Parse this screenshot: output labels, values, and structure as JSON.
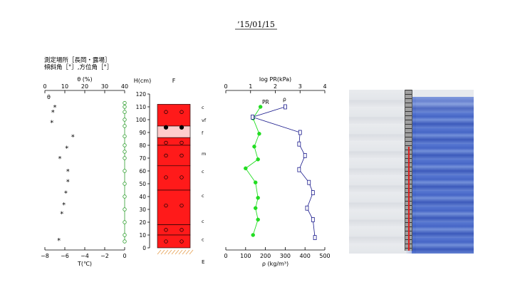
{
  "header": {
    "date": "’15/01/15"
  },
  "meta": {
    "line1": "測定場所［長岡・露場］",
    "line2": "傾斜角［°］,方位角［°］"
  },
  "colors": {
    "temp": "#000000",
    "theta": "#2e9e2e",
    "pr": "#22dd22",
    "rho": "#1a1a8c",
    "layer_red": "#ff1a1a",
    "layer_pink": "#ffcccc",
    "ground": "#e6a050"
  },
  "chart_data": [
    {
      "type": "scatter",
      "name": "temperature-water-content",
      "top_label": "θ (%)",
      "top_ticks": [
        "0",
        "10",
        "20",
        "30",
        "40"
      ],
      "bottom_label": "T(℃)",
      "bottom_ticks": [
        "−8",
        "−6",
        "−4",
        "−2",
        "0"
      ],
      "theta_series_label": "θ",
      "xlim_T": [
        -8,
        0
      ],
      "xlim_theta": [
        0,
        40
      ],
      "temperature": [
        {
          "T": -7.0,
          "h": 110
        },
        {
          "T": -7.2,
          "h": 106
        },
        {
          "T": -7.3,
          "h": 98
        },
        {
          "T": -5.2,
          "h": 87
        },
        {
          "T": -5.8,
          "h": 78
        },
        {
          "T": -6.5,
          "h": 70
        },
        {
          "T": -5.7,
          "h": 60
        },
        {
          "T": -5.7,
          "h": 52
        },
        {
          "T": -5.9,
          "h": 43
        },
        {
          "T": -6.1,
          "h": 34
        },
        {
          "T": -6.3,
          "h": 27
        },
        {
          "T": -6.6,
          "h": 6
        }
      ],
      "theta": [
        {
          "v": 40,
          "h": 113
        },
        {
          "v": 40,
          "h": 110
        },
        {
          "v": 40,
          "h": 106
        },
        {
          "v": 40,
          "h": 100
        },
        {
          "v": 40,
          "h": 95
        },
        {
          "v": 40,
          "h": 87
        },
        {
          "v": 40,
          "h": 80
        },
        {
          "v": 40,
          "h": 75
        },
        {
          "v": 40,
          "h": 70
        },
        {
          "v": 40,
          "h": 60
        },
        {
          "v": 40,
          "h": 50
        },
        {
          "v": 40,
          "h": 40
        },
        {
          "v": 40,
          "h": 30
        },
        {
          "v": 40,
          "h": 20
        },
        {
          "v": 40,
          "h": 10
        },
        {
          "v": 40,
          "h": 5
        }
      ]
    },
    {
      "type": "table",
      "name": "snow-layers",
      "h_label": "H(cm)",
      "f_label": "F",
      "h_ticks": [
        "0",
        "10",
        "20",
        "30",
        "40",
        "50",
        "60",
        "70",
        "80",
        "90",
        "100",
        "110",
        "120"
      ],
      "ylim": [
        0,
        120
      ],
      "ground_label": "E",
      "layers": [
        {
          "bottom": 95,
          "top": 112,
          "color": "red"
        },
        {
          "bottom": 86,
          "top": 95,
          "color": "pink"
        },
        {
          "bottom": 80,
          "top": 86,
          "color": "red"
        },
        {
          "bottom": 64,
          "top": 80,
          "color": "red"
        },
        {
          "bottom": 45,
          "top": 64,
          "color": "red"
        },
        {
          "bottom": 18,
          "top": 45,
          "color": "red"
        },
        {
          "bottom": 10,
          "top": 18,
          "color": "red"
        },
        {
          "bottom": 0,
          "top": 10,
          "color": "red"
        }
      ],
      "grain_marks": [
        {
          "h": 106,
          "filled": false
        },
        {
          "h": 94,
          "filled": true
        },
        {
          "h": 82,
          "filled": false
        },
        {
          "h": 72,
          "filled": false
        },
        {
          "h": 55,
          "filled": false
        },
        {
          "h": 33,
          "filled": false
        },
        {
          "h": 14,
          "filled": false
        },
        {
          "h": 5,
          "filled": false
        }
      ],
      "hardness_labels": [
        {
          "h": 110,
          "text": "c"
        },
        {
          "h": 100,
          "text": "vf"
        },
        {
          "h": 90,
          "text": "f"
        },
        {
          "h": 74,
          "text": "m"
        },
        {
          "h": 60,
          "text": "c"
        },
        {
          "h": 41,
          "text": "c"
        },
        {
          "h": 21,
          "text": "c"
        },
        {
          "h": 7,
          "text": "c"
        }
      ]
    },
    {
      "type": "line",
      "name": "pr-density",
      "top_label": "log PR(kPa)",
      "top_ticks": [
        "0",
        "1",
        "2",
        "3",
        "4"
      ],
      "bottom_label": "ρ (kg/m³)",
      "bottom_ticks": [
        "0",
        "100",
        "200",
        "300",
        "400",
        "500"
      ],
      "pr_series_label": "PR",
      "rho_series_label": "ρ",
      "xlim_logpr": [
        0,
        4
      ],
      "xlim_rho": [
        0,
        500
      ],
      "pr": [
        {
          "v": 1.4,
          "h": 110
        },
        {
          "v": 1.1,
          "h": 101
        },
        {
          "v": 1.35,
          "h": 89
        },
        {
          "v": 1.15,
          "h": 79
        },
        {
          "v": 1.3,
          "h": 69
        },
        {
          "v": 0.8,
          "h": 62
        },
        {
          "v": 1.2,
          "h": 51
        },
        {
          "v": 1.3,
          "h": 39
        },
        {
          "v": 1.2,
          "h": 31
        },
        {
          "v": 1.3,
          "h": 22
        },
        {
          "v": 1.1,
          "h": 10
        }
      ],
      "rho": [
        {
          "v": 300,
          "h": 110
        },
        {
          "v": 135,
          "h": 102
        },
        {
          "v": 375,
          "h": 90
        },
        {
          "v": 370,
          "h": 81
        },
        {
          "v": 400,
          "h": 72
        },
        {
          "v": 370,
          "h": 61
        },
        {
          "v": 420,
          "h": 51
        },
        {
          "v": 440,
          "h": 43
        },
        {
          "v": 410,
          "h": 31
        },
        {
          "v": 440,
          "h": 22
        },
        {
          "v": 450,
          "h": 8
        }
      ]
    }
  ],
  "photo": {
    "alt": "snow-pit-photo"
  }
}
